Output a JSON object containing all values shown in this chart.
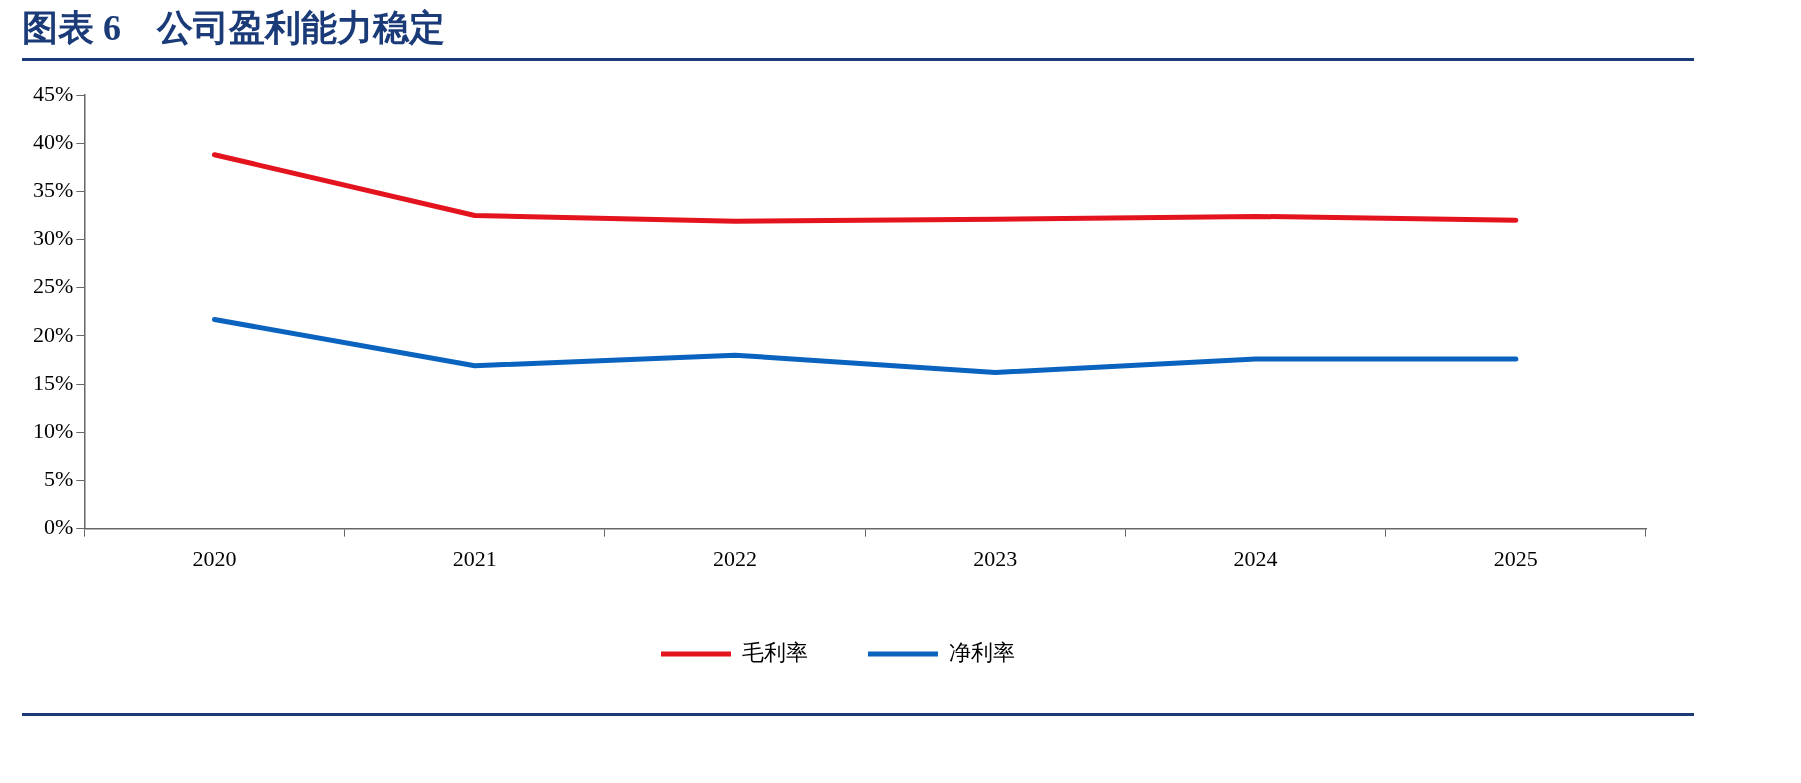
{
  "chart_data": {
    "type": "line",
    "title": "图表 6　公司盈利能力稳定",
    "categories": [
      "2020",
      "2021",
      "2022",
      "2023",
      "2024",
      "2025"
    ],
    "series": [
      {
        "name": "毛利率",
        "color": "#e3141e",
        "values": [
          38.8,
          32.5,
          31.9,
          32.1,
          32.4,
          32.0
        ]
      },
      {
        "name": "净利率",
        "color": "#0a63be",
        "values": [
          21.7,
          16.9,
          18.0,
          16.2,
          17.6,
          17.6
        ]
      }
    ],
    "ylim": [
      0,
      45
    ],
    "yticks": [
      {
        "value": 0,
        "label": "0%"
      },
      {
        "value": 5,
        "label": "5%"
      },
      {
        "value": 10,
        "label": "10%"
      },
      {
        "value": 15,
        "label": "15%"
      },
      {
        "value": 20,
        "label": "20%"
      },
      {
        "value": 25,
        "label": "25%"
      },
      {
        "value": 30,
        "label": "30%"
      },
      {
        "value": 35,
        "label": "35%"
      },
      {
        "value": 40,
        "label": "40%"
      },
      {
        "value": 45,
        "label": "45%"
      }
    ],
    "grid": false,
    "legend": "bottom",
    "marker": "none",
    "line_style": "solid"
  }
}
